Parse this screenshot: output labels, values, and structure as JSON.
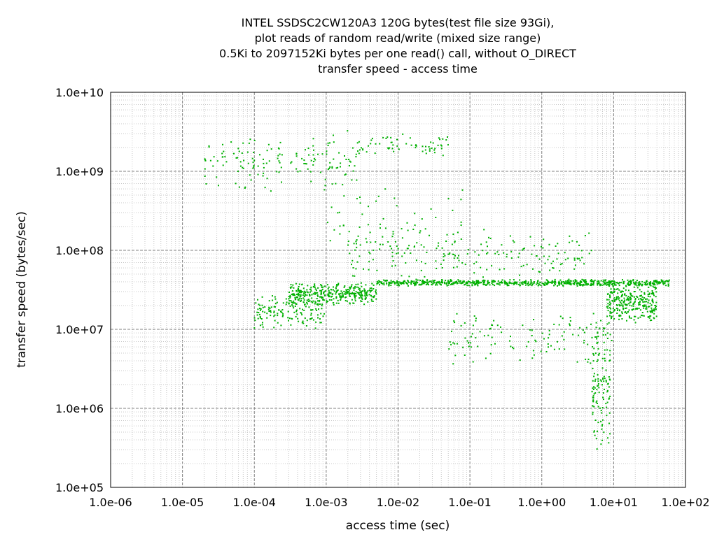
{
  "chart_data": {
    "type": "scatter",
    "title_lines": [
      "INTEL SSDSC2CW120A3 120G bytes(test file size 93Gi),",
      "plot reads of random read/write (mixed size range)",
      "0.5Ki to 2097152Ki bytes per one read() call, without O_DIRECT",
      "transfer speed - access time"
    ],
    "xlabel": "access time (sec)",
    "ylabel": "transfer speed (bytes/sec)",
    "x_scale": "log",
    "y_scale": "log",
    "xlim": [
      1e-06,
      100
    ],
    "ylim": [
      100000.0,
      10000000000.0
    ],
    "x_ticks": [
      "1.0e-06",
      "1.0e-05",
      "1.0e-04",
      "1.0e-03",
      "1.0e-02",
      "1.0e-01",
      "1.0e+00",
      "1.0e+01",
      "1.0e+02"
    ],
    "y_ticks": [
      "1.0e+05",
      "1.0e+06",
      "1.0e+07",
      "1.0e+08",
      "1.0e+09",
      "1.0e+10"
    ],
    "grid": true,
    "point_color": "#00b000",
    "series": [
      {
        "clusters": [
          {
            "x_range": [
              2e-05,
              0.003
            ],
            "y_range": [
              500000000.0,
              3500000000.0
            ],
            "count": 160
          },
          {
            "x_range": [
              0.003,
              0.05
            ],
            "y_range": [
              1500000000.0,
              3000000000.0
            ],
            "count": 60
          },
          {
            "x_range": [
              0.0001,
              0.001
            ],
            "y_range": [
              10000000.0,
              30000000.0
            ],
            "count": 160
          },
          {
            "x_range": [
              0.0003,
              0.005
            ],
            "y_range": [
              20000000.0,
              40000000.0
            ],
            "count": 350
          },
          {
            "x_range": [
              0.005,
              60
            ],
            "y_range": [
              35000000.0,
              43000000.0
            ],
            "count": 700
          },
          {
            "x_range": [
              0.002,
              5
            ],
            "y_range": [
              40000000.0,
              200000000.0
            ],
            "count": 200
          },
          {
            "x_range": [
              0.05,
              10
            ],
            "y_range": [
              3000000.0,
              20000000.0
            ],
            "count": 120
          },
          {
            "x_range": [
              5,
              9
            ],
            "y_range": [
              200000.0,
              20000000.0
            ],
            "count": 130
          },
          {
            "x_range": [
              8,
              40
            ],
            "y_range": [
              12000000.0,
              40000000.0
            ],
            "count": 300
          },
          {
            "x_range": [
              0.001,
              0.1
            ],
            "y_range": [
              100000000.0,
              800000000.0
            ],
            "count": 50
          }
        ]
      }
    ]
  }
}
